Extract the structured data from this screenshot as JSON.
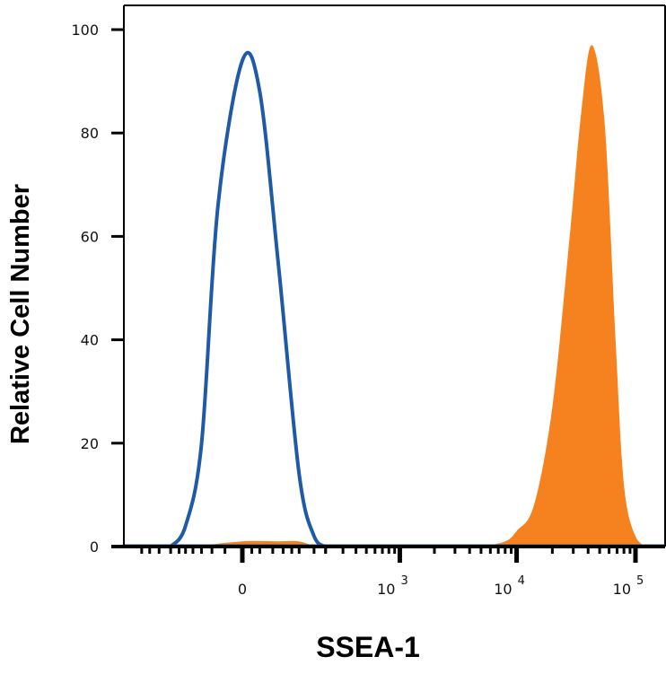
{
  "chart_data": {
    "type": "area",
    "xlabel": "SSEA-1",
    "ylabel": "Relative Cell Number",
    "ylim": [
      0,
      100
    ],
    "y_ticks": [
      "0",
      "20",
      "40",
      "60",
      "80",
      "100"
    ],
    "x_scale": "biexponential",
    "x_ticks": [
      {
        "base": "0",
        "exp": ""
      },
      {
        "base": "10",
        "exp": "3"
      },
      {
        "base": "10",
        "exp": "4"
      },
      {
        "base": "10",
        "exp": "5"
      }
    ],
    "grid": false,
    "legend": "none",
    "series": [
      {
        "style": "outline",
        "color": "#1f5aa6",
        "peak_x": "0",
        "peak_y": 94,
        "x": [
          "-150",
          "-100",
          "-60",
          "-30",
          "0",
          "20",
          "50",
          "100",
          "150",
          "200",
          "250"
        ],
        "y": [
          0,
          4,
          20,
          66,
          94,
          88,
          55,
          14,
          2,
          0,
          0
        ]
      },
      {
        "style": "filled",
        "color": "#f5821f",
        "peak_x": "4.3 x 10^4",
        "peak_y": 97,
        "x": [
          "5000",
          "8000",
          "10000",
          "14000",
          "20000",
          "28000",
          "35000",
          "43000",
          "55000",
          "68000",
          "80000",
          "100000",
          "130000"
        ],
        "y": [
          0,
          1,
          3,
          8,
          27,
          60,
          84,
          97,
          82,
          40,
          12,
          2,
          0
        ]
      },
      {
        "style": "filled",
        "color": "#f5821f",
        "peak_x": "50",
        "peak_y": 1,
        "x": [
          "-80",
          "0",
          "50",
          "100",
          "150"
        ],
        "y": [
          0,
          1,
          1,
          1,
          0
        ]
      }
    ]
  }
}
